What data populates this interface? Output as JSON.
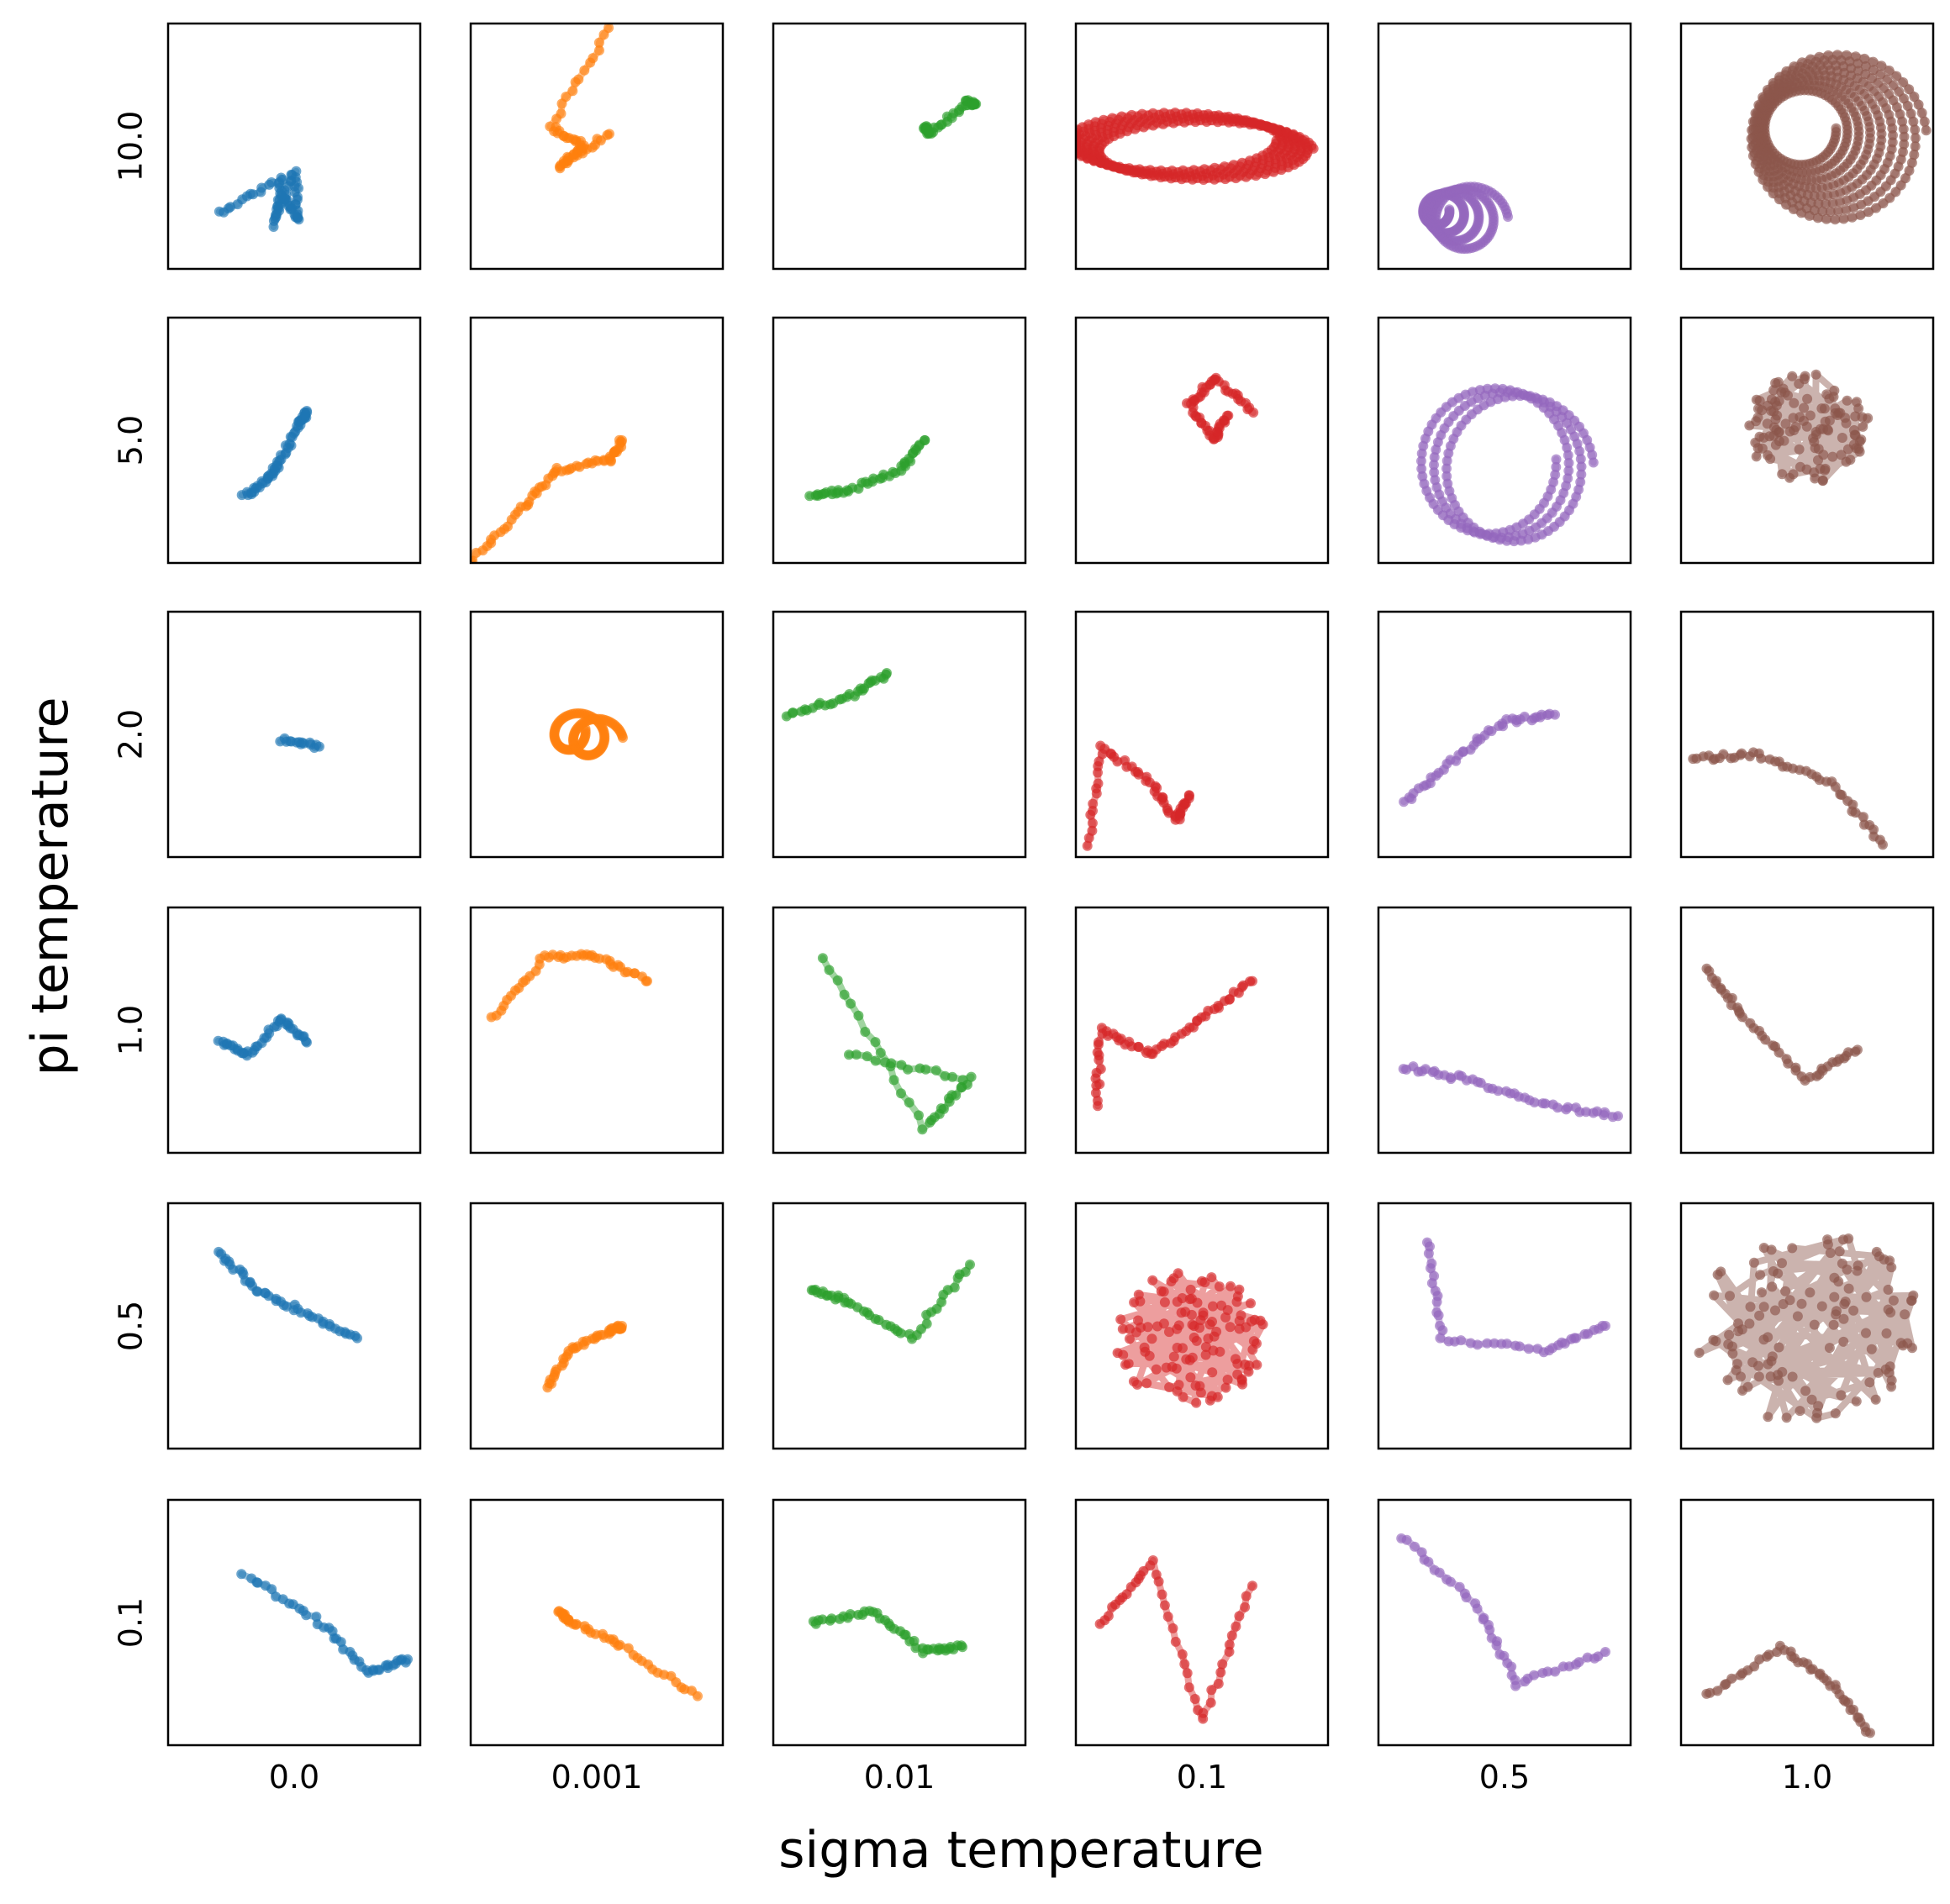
{
  "chart_data": {
    "type": "scatter",
    "xlabel": "sigma temperature",
    "ylabel": "pi temperature",
    "col_labels": [
      "0.0",
      "0.001",
      "0.01",
      "0.1",
      "0.5",
      "1.0"
    ],
    "row_labels": [
      "10.0",
      "5.0",
      "2.0",
      "1.0",
      "0.5",
      "0.1"
    ],
    "colors": [
      "#1f77b4",
      "#ff7f0e",
      "#2ca02c",
      "#d62728",
      "#9467bd",
      "#8c564b"
    ],
    "grid": false,
    "ticks": "column labels below bottom row, row labels left of first column",
    "trajectories": [
      [
        {
          "shape": "wedge",
          "points": [
            [
              0.2,
              0.77
            ],
            [
              0.45,
              0.63
            ],
            [
              0.42,
              0.82
            ],
            [
              0.5,
              0.6
            ],
            [
              0.52,
              0.8
            ],
            [
              0.45,
              0.7
            ]
          ]
        },
        {
          "shape": "streak",
          "points": [
            [
              0.55,
              0.02
            ],
            [
              0.32,
              0.42
            ],
            [
              0.45,
              0.5
            ],
            [
              0.35,
              0.58
            ],
            [
              0.55,
              0.45
            ]
          ]
        },
        {
          "shape": "clusters",
          "points": [
            [
              0.6,
              0.42
            ],
            [
              0.62,
              0.45
            ],
            [
              0.77,
              0.32
            ],
            [
              0.8,
              0.33
            ]
          ]
        },
        {
          "shape": "coil",
          "cx": 0.45,
          "cy": 0.5,
          "rx": 0.42,
          "ry": 0.12,
          "turns": 6
        },
        {
          "shape": "spiral",
          "cx": 0.3,
          "cy": 0.78,
          "r": 0.14,
          "turns": 4
        },
        {
          "shape": "spiral",
          "cx": 0.55,
          "cy": 0.45,
          "r": 0.35,
          "turns": 8
        }
      ],
      [
        {
          "shape": "streak",
          "points": [
            [
              0.3,
              0.73
            ],
            [
              0.4,
              0.66
            ],
            [
              0.45,
              0.58
            ],
            [
              0.52,
              0.43
            ],
            [
              0.55,
              0.38
            ]
          ]
        },
        {
          "shape": "streak",
          "points": [
            [
              0.0,
              1.0
            ],
            [
              0.2,
              0.78
            ],
            [
              0.35,
              0.62
            ],
            [
              0.55,
              0.58
            ],
            [
              0.6,
              0.5
            ]
          ]
        },
        {
          "shape": "streak",
          "points": [
            [
              0.15,
              0.73
            ],
            [
              0.3,
              0.7
            ],
            [
              0.5,
              0.62
            ],
            [
              0.6,
              0.5
            ]
          ]
        },
        {
          "shape": "loops",
          "points": [
            [
              0.7,
              0.38
            ],
            [
              0.55,
              0.25
            ],
            [
              0.45,
              0.35
            ],
            [
              0.55,
              0.5
            ],
            [
              0.6,
              0.4
            ]
          ]
        },
        {
          "shape": "coil",
          "cx": 0.5,
          "cy": 0.6,
          "rx": 0.28,
          "ry": 0.3,
          "turns": 3
        },
        {
          "shape": "cluster",
          "cx": 0.5,
          "cy": 0.45,
          "r": 0.25
        }
      ],
      [
        {
          "shape": "clusters",
          "points": [
            [
              0.45,
              0.52
            ],
            [
              0.6,
              0.55
            ]
          ]
        },
        {
          "shape": "loop",
          "cx": 0.45,
          "cy": 0.5,
          "r": 0.08
        },
        {
          "shape": "streak",
          "points": [
            [
              0.05,
              0.42
            ],
            [
              0.3,
              0.35
            ],
            [
              0.45,
              0.25
            ]
          ]
        },
        {
          "shape": "lines",
          "points": [
            [
              0.05,
              0.95
            ],
            [
              0.1,
              0.55
            ],
            [
              0.3,
              0.7
            ],
            [
              0.4,
              0.85
            ],
            [
              0.45,
              0.75
            ]
          ]
        },
        {
          "shape": "streak",
          "points": [
            [
              0.1,
              0.78
            ],
            [
              0.3,
              0.6
            ],
            [
              0.5,
              0.45
            ],
            [
              0.7,
              0.42
            ]
          ]
        },
        {
          "shape": "streak",
          "points": [
            [
              0.05,
              0.6
            ],
            [
              0.3,
              0.58
            ],
            [
              0.6,
              0.7
            ],
            [
              0.8,
              0.95
            ]
          ]
        }
      ],
      [
        {
          "shape": "streak",
          "points": [
            [
              0.2,
              0.55
            ],
            [
              0.32,
              0.6
            ],
            [
              0.45,
              0.45
            ],
            [
              0.55,
              0.55
            ]
          ]
        },
        {
          "shape": "streak",
          "points": [
            [
              0.08,
              0.45
            ],
            [
              0.3,
              0.2
            ],
            [
              0.5,
              0.2
            ],
            [
              0.7,
              0.3
            ]
          ]
        },
        {
          "shape": "wedge",
          "points": [
            [
              0.2,
              0.2
            ],
            [
              0.6,
              0.9
            ],
            [
              0.78,
              0.7
            ],
            [
              0.3,
              0.6
            ]
          ]
        },
        {
          "shape": "streak",
          "points": [
            [
              0.08,
              0.8
            ],
            [
              0.1,
              0.5
            ],
            [
              0.3,
              0.6
            ],
            [
              0.5,
              0.45
            ],
            [
              0.7,
              0.3
            ]
          ]
        },
        {
          "shape": "streak",
          "points": [
            [
              0.1,
              0.65
            ],
            [
              0.35,
              0.7
            ],
            [
              0.65,
              0.8
            ],
            [
              0.95,
              0.85
            ]
          ]
        },
        {
          "shape": "streak",
          "points": [
            [
              0.1,
              0.25
            ],
            [
              0.25,
              0.45
            ],
            [
              0.5,
              0.7
            ],
            [
              0.7,
              0.58
            ]
          ]
        }
      ],
      [
        {
          "shape": "streak",
          "points": [
            [
              0.2,
              0.2
            ],
            [
              0.35,
              0.35
            ],
            [
              0.55,
              0.45
            ],
            [
              0.75,
              0.55
            ]
          ]
        },
        {
          "shape": "streak",
          "points": [
            [
              0.3,
              0.75
            ],
            [
              0.4,
              0.6
            ],
            [
              0.55,
              0.52
            ],
            [
              0.6,
              0.5
            ]
          ]
        },
        {
          "shape": "streak",
          "points": [
            [
              0.15,
              0.35
            ],
            [
              0.3,
              0.4
            ],
            [
              0.55,
              0.55
            ],
            [
              0.78,
              0.25
            ]
          ]
        },
        {
          "shape": "cluster",
          "cx": 0.45,
          "cy": 0.55,
          "r": 0.3
        },
        {
          "shape": "streak",
          "points": [
            [
              0.2,
              0.15
            ],
            [
              0.25,
              0.55
            ],
            [
              0.65,
              0.6
            ],
            [
              0.9,
              0.5
            ]
          ]
        },
        {
          "shape": "cluster",
          "cx": 0.5,
          "cy": 0.5,
          "r": 0.45
        }
      ],
      [
        {
          "shape": "streak",
          "points": [
            [
              0.3,
              0.3
            ],
            [
              0.6,
              0.5
            ],
            [
              0.8,
              0.7
            ],
            [
              0.95,
              0.65
            ]
          ]
        },
        {
          "shape": "streak",
          "points": [
            [
              0.35,
              0.45
            ],
            [
              0.4,
              0.5
            ],
            [
              0.6,
              0.6
            ],
            [
              0.9,
              0.8
            ]
          ]
        },
        {
          "shape": "streak",
          "points": [
            [
              0.15,
              0.5
            ],
            [
              0.4,
              0.45
            ],
            [
              0.6,
              0.62
            ],
            [
              0.75,
              0.6
            ]
          ]
        },
        {
          "shape": "streak",
          "points": [
            [
              0.1,
              0.5
            ],
            [
              0.3,
              0.25
            ],
            [
              0.5,
              0.9
            ],
            [
              0.7,
              0.35
            ]
          ]
        },
        {
          "shape": "streak",
          "points": [
            [
              0.1,
              0.15
            ],
            [
              0.4,
              0.45
            ],
            [
              0.55,
              0.75
            ],
            [
              0.9,
              0.62
            ]
          ]
        },
        {
          "shape": "streak",
          "points": [
            [
              0.1,
              0.8
            ],
            [
              0.4,
              0.6
            ],
            [
              0.6,
              0.75
            ],
            [
              0.75,
              0.95
            ]
          ]
        }
      ]
    ]
  }
}
